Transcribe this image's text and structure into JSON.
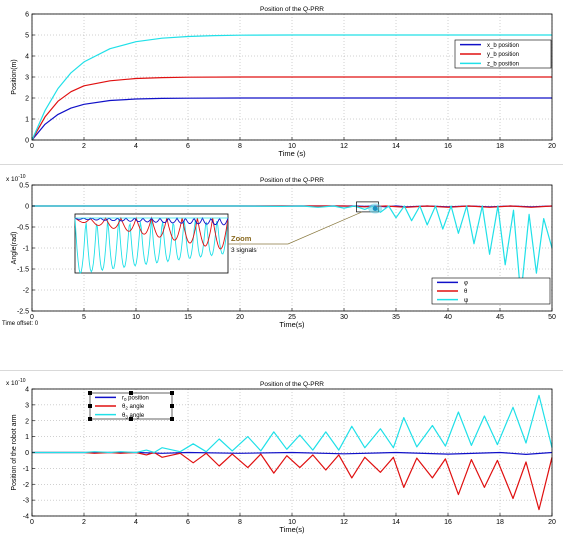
{
  "colors": {
    "blue": "#1010c8",
    "red": "#e01010",
    "cyan": "#20e0e8",
    "axis": "#000000",
    "grid": "#a0a0a0"
  },
  "time_offset": {
    "label": "Time offset:",
    "value": "0"
  },
  "zoom_annotation": {
    "title": "Zoom",
    "subtitle": "3 signals"
  },
  "chart_data": [
    {
      "type": "line",
      "title": "Position of the Q-PRR",
      "xlabel": "Time (s)",
      "ylabel": "Position(m)",
      "xlim": [
        0,
        20
      ],
      "ylim": [
        0,
        6
      ],
      "xticks": [
        0,
        2,
        4,
        6,
        8,
        10,
        12,
        14,
        16,
        18,
        20
      ],
      "yticks": [
        0,
        1,
        2,
        3,
        4,
        5,
        6
      ],
      "grid": true,
      "legend": "top-right",
      "series": [
        {
          "name": "x_b position",
          "color": "#1010c8",
          "x": [
            0,
            0.5,
            1,
            1.5,
            2,
            3,
            4,
            5,
            6,
            8,
            10,
            20
          ],
          "y": [
            0,
            0.75,
            1.22,
            1.52,
            1.7,
            1.88,
            1.95,
            1.98,
            1.99,
            2.0,
            2.0,
            2.0
          ]
        },
        {
          "name": "y_b position",
          "color": "#e01010",
          "x": [
            0,
            0.5,
            1,
            1.5,
            2,
            3,
            4,
            5,
            6,
            8,
            10,
            20
          ],
          "y": [
            0,
            1.1,
            1.85,
            2.3,
            2.58,
            2.82,
            2.93,
            2.97,
            2.99,
            3.0,
            3.0,
            3.0
          ]
        },
        {
          "name": "z_b position",
          "color": "#20e0e8",
          "x": [
            0,
            0.5,
            1,
            1.5,
            2,
            3,
            4,
            5,
            6,
            7,
            8,
            10,
            20
          ],
          "y": [
            0,
            1.4,
            2.45,
            3.2,
            3.72,
            4.35,
            4.68,
            4.85,
            4.93,
            4.97,
            4.99,
            5.0,
            5.0
          ]
        }
      ]
    },
    {
      "type": "line",
      "title": "Position of the Q-PRR",
      "xlabel": "Time(s)",
      "ylabel": "Angle(rad)",
      "exponent": "x 10",
      "exponent_power": "-10",
      "xlim": [
        0,
        50
      ],
      "ylim": [
        -2.5,
        0.5
      ],
      "xticks": [
        0,
        5,
        10,
        15,
        20,
        25,
        30,
        35,
        40,
        45,
        50
      ],
      "yticks": [
        0.5,
        0,
        -0.5,
        -1,
        -1.5,
        -2,
        -2.5
      ],
      "ytick_labels": [
        "0.5",
        "0",
        "-0.5",
        "-1",
        "-1.5",
        "-2",
        "-2.5"
      ],
      "grid": true,
      "legend": "bottom-right",
      "series": [
        {
          "name": "φ",
          "color": "#1010c8",
          "x": [
            0,
            30,
            31,
            32,
            33,
            34,
            35,
            36,
            38,
            40,
            42,
            44,
            46,
            48,
            50
          ],
          "y": [
            0,
            0,
            0,
            -0.01,
            0,
            -0.02,
            0,
            -0.02,
            0,
            -0.02,
            0,
            -0.02,
            0,
            -0.02,
            0
          ]
        },
        {
          "name": "θ",
          "color": "#e01010",
          "x": [
            0,
            30,
            32,
            34,
            36,
            38,
            40,
            42,
            44,
            46,
            48,
            50
          ],
          "y": [
            0,
            0,
            -0.02,
            0,
            -0.03,
            0,
            -0.03,
            0,
            -0.03,
            0,
            -0.03,
            0
          ]
        },
        {
          "name": "ψ",
          "color": "#20e0e8",
          "x": [
            0,
            20,
            24,
            26,
            27.5,
            29,
            30,
            31,
            32,
            32.8,
            33.5,
            34.3,
            35,
            35.8,
            36.5,
            37.3,
            38,
            38.8,
            39.5,
            40.3,
            41,
            41.8,
            42.5,
            43.3,
            44,
            44.8,
            45.5,
            46.3,
            47,
            47.8,
            48.5,
            49.2,
            50
          ],
          "y": [
            0,
            0,
            -0.01,
            0,
            -0.03,
            0,
            -0.05,
            0,
            -0.08,
            0,
            -0.15,
            0,
            -0.28,
            0,
            -0.35,
            0,
            -0.45,
            0,
            -0.55,
            0,
            -0.65,
            0,
            -0.9,
            0,
            -1.15,
            0,
            -1.4,
            -0.1,
            -2.15,
            -0.2,
            -1.6,
            -0.3,
            -1.0
          ]
        }
      ]
    },
    {
      "type": "line",
      "title": "Position of the Q-PRR",
      "xlabel": "Time(s)",
      "ylabel": "Position of the robot arm",
      "exponent": "x 10",
      "exponent_power": "-10",
      "xlim": [
        0,
        20
      ],
      "ylim": [
        -4,
        4
      ],
      "xticks": [
        0,
        2,
        4,
        6,
        8,
        10,
        12,
        14,
        16,
        18,
        20
      ],
      "yticks": [
        4,
        3,
        2,
        1,
        0,
        -1,
        -2,
        -3,
        -4
      ],
      "grid": true,
      "legend": "top-left",
      "series": [
        {
          "name": "r0 position",
          "legend_base": "r",
          "legend_sub": "0",
          "legend_rest": " position",
          "color": "#1010c8",
          "x": [
            0,
            4,
            5,
            6,
            8,
            10,
            12,
            14,
            16,
            18,
            19,
            20
          ],
          "y": [
            0,
            0,
            -0.05,
            0,
            -0.05,
            0,
            -0.08,
            0,
            -0.1,
            0,
            -0.12,
            0
          ]
        },
        {
          "name": "θ2 angle",
          "legend_base": "θ",
          "legend_sub": "2",
          "legend_rest": " angle",
          "color": "#e01010",
          "x": [
            0,
            2,
            2.4,
            3,
            3.4,
            4,
            4.4,
            4.7,
            5,
            5.7,
            6.2,
            6.7,
            7.2,
            7.7,
            8.3,
            8.8,
            9.3,
            9.8,
            10.3,
            10.8,
            11.3,
            11.8,
            12.3,
            12.8,
            13.4,
            13.9,
            14.3,
            14.8,
            15.4,
            15.9,
            16.4,
            16.9,
            17.4,
            17.9,
            18.5,
            19,
            19.5,
            20
          ],
          "y": [
            0,
            0,
            -0.05,
            0,
            -0.05,
            0,
            -0.15,
            0,
            -0.3,
            -0.05,
            -0.65,
            -0.05,
            -0.85,
            -0.1,
            -0.95,
            -0.1,
            -1.3,
            -0.2,
            -0.95,
            -0.15,
            -1.1,
            -0.15,
            -1.6,
            -0.3,
            -1.25,
            -0.3,
            -2.2,
            -0.35,
            -1.6,
            -0.4,
            -2.65,
            -0.45,
            -2.2,
            -0.5,
            -2.9,
            -0.6,
            -3.6,
            -0.3
          ]
        },
        {
          "name": "θ3 angle",
          "legend_base": "θ",
          "legend_sub": "3",
          "legend_rest": " angle",
          "color": "#20e0e8",
          "x": [
            0,
            2,
            2.4,
            3,
            3.4,
            4,
            4.4,
            4.7,
            5,
            5.7,
            6.2,
            6.7,
            7.2,
            7.7,
            8.3,
            8.8,
            9.3,
            9.8,
            10.3,
            10.8,
            11.3,
            11.8,
            12.3,
            12.8,
            13.4,
            13.9,
            14.3,
            14.8,
            15.4,
            15.9,
            16.4,
            16.9,
            17.4,
            17.9,
            18.5,
            19,
            19.5,
            20
          ],
          "y": [
            0,
            0,
            0.05,
            0,
            0.05,
            0,
            0.15,
            0,
            0.3,
            0.05,
            0.55,
            0.05,
            0.85,
            0.1,
            1.0,
            0.1,
            1.3,
            0.2,
            1.1,
            0.15,
            1.3,
            0.15,
            1.65,
            0.3,
            1.5,
            0.3,
            2.2,
            0.35,
            1.7,
            0.4,
            2.55,
            0.45,
            2.3,
            0.5,
            2.85,
            0.6,
            3.6,
            0.3
          ]
        }
      ]
    }
  ]
}
